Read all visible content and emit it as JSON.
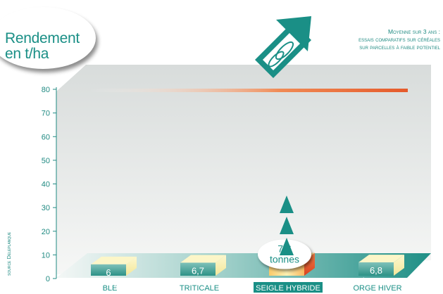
{
  "title": {
    "line1": "Rendement",
    "line2": "en t/ha"
  },
  "note": {
    "line1": "Moyenne sur 3 ans :",
    "line2": "essais comparatifs sur céréales",
    "line3": "sur parcelles à faible potentiel"
  },
  "source": "source Deleplanque",
  "colors": {
    "accent": "#1a8f86",
    "highlight": "#e5572a",
    "bar_top": "#fbf3b5",
    "floor": "#2f9c92"
  },
  "chart_data": {
    "type": "bar",
    "categories": [
      "BLE",
      "TRITICALE",
      "SEIGLE HYBRIDE",
      "ORGE HIVER"
    ],
    "values": [
      6,
      6.7,
      7.6,
      6.8
    ],
    "data_labels": [
      [
        "6",
        "tonnes"
      ],
      [
        "6,7",
        "tonnes"
      ],
      [
        "7,6",
        "tonnes"
      ],
      [
        "6,8",
        "tonnes"
      ]
    ],
    "highlighted_index": 2,
    "ylim": [
      0,
      80
    ],
    "yticks": [
      0,
      10,
      20,
      30,
      40,
      50,
      60,
      70,
      80
    ],
    "grid": false,
    "reference_line": 80
  }
}
